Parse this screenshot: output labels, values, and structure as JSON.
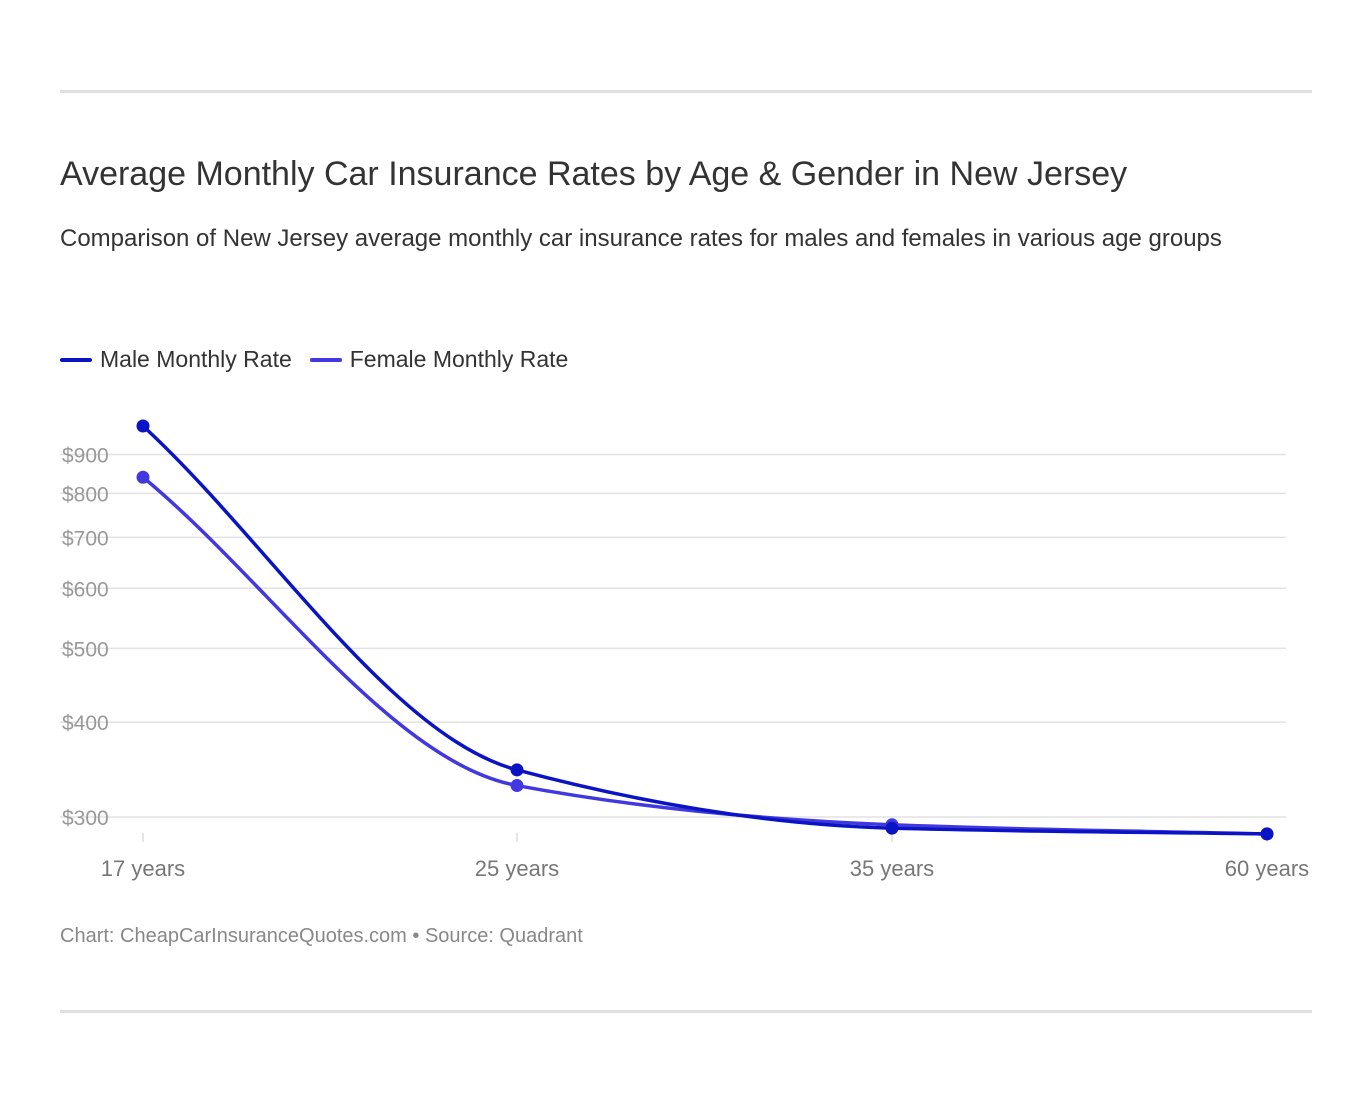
{
  "chart_data": {
    "type": "line",
    "title": "Average Monthly Car Insurance Rates by Age & Gender in New Jersey",
    "subtitle": "Comparison of New Jersey average monthly car insurance rates for males and females in various age groups",
    "categories": [
      "17 years",
      "25 years",
      "35 years",
      "60 years"
    ],
    "series": [
      {
        "name": "Male Monthly Rate",
        "color": "#0a14c4",
        "values": [
          981,
          346,
          290,
          285
        ]
      },
      {
        "name": "Female Monthly Rate",
        "color": "#4238e0",
        "values": [
          840,
          330,
          293,
          285
        ]
      }
    ],
    "y_scale": "log",
    "y_ticks": [
      300,
      400,
      500,
      600,
      700,
      800,
      900
    ],
    "y_tick_labels": [
      "$300",
      "$400",
      "$500",
      "$600",
      "$700",
      "$800",
      "$900"
    ],
    "grid": true,
    "legend_position": "top-left",
    "footer": "Chart: CheapCarInsuranceQuotes.com • Source: Quadrant"
  }
}
